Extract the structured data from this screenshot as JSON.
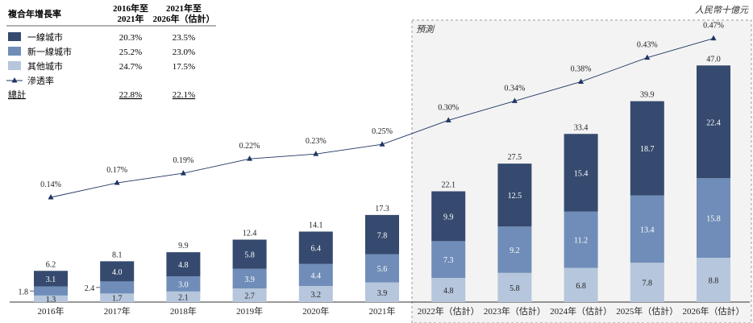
{
  "unit_label": "人民幣十億元",
  "forecast_label": "預測",
  "legend": {
    "header": "複合年增長率",
    "col1": [
      "2016年至",
      "2021年"
    ],
    "col2": [
      "2021年至",
      "2026年（估計）"
    ],
    "rows": [
      {
        "name": "一線城市",
        "a": "20.3%",
        "b": "23.5%",
        "color": "#354a6e"
      },
      {
        "name": "新一線城市",
        "a": "25.2%",
        "b": "23.0%",
        "color": "#6f8db8"
      },
      {
        "name": "其他城市",
        "a": "24.7%",
        "b": "17.5%",
        "color": "#b6c6dc"
      }
    ],
    "penetration": "滲透率",
    "total_label": "總計",
    "total_a": "22.8%",
    "total_b": "22.1%"
  },
  "chart_data": {
    "type": "bar",
    "stacked": true,
    "categories": [
      "2016年",
      "2017年",
      "2018年",
      "2019年",
      "2020年",
      "2021年",
      "2022年（估計）",
      "2023年（估計）",
      "2024年（估計）",
      "2025年（估計）",
      "2026年（估計）"
    ],
    "series": [
      {
        "name": "其他城市",
        "color": "#b6c6dc",
        "values": [
          1.3,
          1.7,
          2.1,
          2.7,
          3.2,
          3.9,
          4.8,
          5.8,
          6.8,
          7.8,
          8.8
        ]
      },
      {
        "name": "新一線城市",
        "color": "#6f8db8",
        "values": [
          1.8,
          2.4,
          3.0,
          3.9,
          4.4,
          5.6,
          7.3,
          9.2,
          11.2,
          13.4,
          15.8
        ]
      },
      {
        "name": "一線城市",
        "color": "#354a6e",
        "values": [
          3.1,
          4.0,
          4.8,
          5.8,
          6.4,
          7.8,
          9.9,
          12.5,
          15.4,
          18.7,
          22.4
        ]
      }
    ],
    "segment_labels": [
      [
        "1.3",
        "1.8",
        "3.1"
      ],
      [
        "1.7",
        "2.4",
        "4.0"
      ],
      [
        "2.1",
        "3.0",
        "4.8"
      ],
      [
        "2.7",
        "3.9",
        "5.8"
      ],
      [
        "3.2",
        "4.4",
        "6.4"
      ],
      [
        "3.9",
        "5.6",
        "7.8"
      ],
      [
        "4.8",
        "7.3",
        "9.9"
      ],
      [
        "5.8",
        "9.2",
        "12.5"
      ],
      [
        "6.8",
        "11.2",
        "15.4"
      ],
      [
        "7.8",
        "13.4",
        "18.7"
      ],
      [
        "8.8",
        "15.8",
        "22.4"
      ]
    ],
    "totals": [
      "6.2",
      "8.1",
      "9.9",
      "12.4",
      "14.1",
      "17.3",
      "22.1",
      "27.5",
      "33.4",
      "39.9",
      "47.0"
    ],
    "line": {
      "name": "滲透率",
      "values": [
        0.14,
        0.17,
        0.19,
        0.22,
        0.23,
        0.25,
        0.3,
        0.34,
        0.38,
        0.43,
        0.47
      ],
      "labels": [
        "0.14%",
        "0.17%",
        "0.19%",
        "0.22%",
        "0.23%",
        "0.25%",
        "0.30%",
        "0.34%",
        "0.38%",
        "0.43%",
        "0.47%"
      ]
    },
    "forecast_start_index": 6
  }
}
